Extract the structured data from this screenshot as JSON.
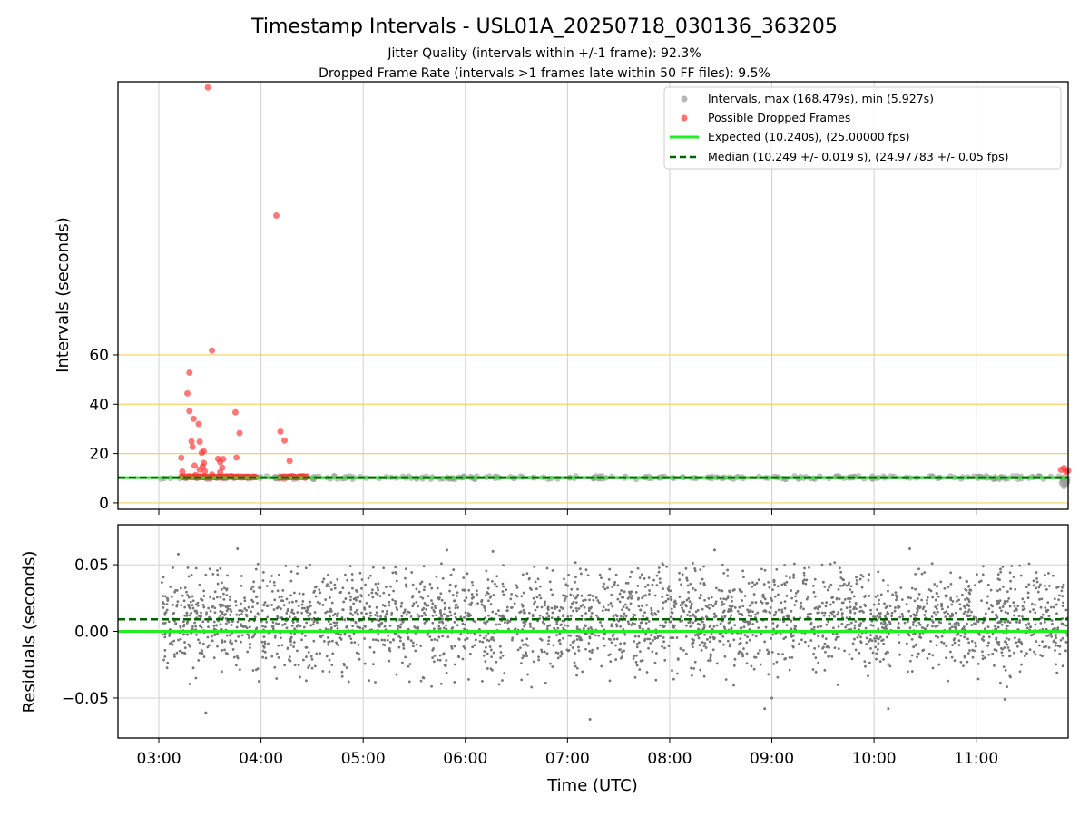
{
  "figure": {
    "title": "Timestamp Intervals - USL01A_20250718_030136_363205",
    "subtitle_1": "Jitter Quality (intervals within +/-1 frame): 92.3%",
    "subtitle_2": "Dropped Frame Rate (intervals >1 frames late within 50 FF files): 9.5%"
  },
  "chart_data": [
    {
      "type": "scatter",
      "ylabel": "Intervals (seconds)",
      "yticks": [
        "0",
        "20",
        "40",
        "60"
      ],
      "ytick_values": [
        0,
        20,
        40,
        60
      ],
      "ylim": [
        -2.6,
        170.8
      ],
      "xlim": [
        2.6,
        11.9
      ],
      "xunit": "hours UTC",
      "grid": true,
      "reference_lines_y": [
        0,
        20,
        40,
        60
      ],
      "legend_position": "upper right",
      "legend": [
        {
          "label": "Intervals, max (168.479s), min (5.927s)",
          "kind": "dot",
          "color": "#999999"
        },
        {
          "label": "Possible Dropped Frames",
          "kind": "dot",
          "color": "#ff5a5a"
        },
        {
          "label": "Expected (10.240s), (25.00000 fps)",
          "kind": "line",
          "color": "#22ee22"
        },
        {
          "label": "Median (10.249 +/- 0.019 s), (24.97783 +/- 0.05 fps)",
          "kind": "dash",
          "color": "#006400"
        }
      ],
      "expected_interval": 10.24,
      "median_interval": 10.249,
      "dropped_frames": [
        {
          "t": 3.48,
          "y": 168.5
        },
        {
          "t": 4.15,
          "y": 116.5
        },
        {
          "t": 3.52,
          "y": 61.8
        },
        {
          "t": 3.3,
          "y": 52.8
        },
        {
          "t": 3.28,
          "y": 44.4
        },
        {
          "t": 3.3,
          "y": 37.2
        },
        {
          "t": 3.34,
          "y": 34.1
        },
        {
          "t": 3.39,
          "y": 32.0
        },
        {
          "t": 3.75,
          "y": 36.7
        },
        {
          "t": 3.79,
          "y": 28.3
        },
        {
          "t": 4.19,
          "y": 28.9
        },
        {
          "t": 4.23,
          "y": 25.3
        },
        {
          "t": 3.32,
          "y": 24.9
        },
        {
          "t": 3.4,
          "y": 24.8
        },
        {
          "t": 3.33,
          "y": 22.7
        },
        {
          "t": 3.44,
          "y": 20.9
        },
        {
          "t": 3.42,
          "y": 20.3
        },
        {
          "t": 3.22,
          "y": 18.3
        },
        {
          "t": 3.76,
          "y": 18.4
        },
        {
          "t": 4.28,
          "y": 17.0
        },
        {
          "t": 3.58,
          "y": 17.9
        },
        {
          "t": 3.6,
          "y": 16.6
        },
        {
          "t": 3.63,
          "y": 17.8
        },
        {
          "t": 3.44,
          "y": 16.2
        },
        {
          "t": 3.35,
          "y": 15.1
        },
        {
          "t": 3.43,
          "y": 14.8
        },
        {
          "t": 3.62,
          "y": 14.3
        },
        {
          "t": 3.4,
          "y": 13.5
        },
        {
          "t": 3.45,
          "y": 12.8
        },
        {
          "t": 3.23,
          "y": 12.7
        },
        {
          "t": 3.6,
          "y": 12.4
        },
        {
          "t": 3.36,
          "y": 11.3
        },
        {
          "t": 3.52,
          "y": 11.5
        },
        {
          "t": 11.83,
          "y": 13.4
        },
        {
          "t": 11.86,
          "y": 14.1
        },
        {
          "t": 11.88,
          "y": 12.6
        },
        {
          "t": 11.9,
          "y": 13.0
        }
      ],
      "dropped_frame_runs": [
        {
          "t_start": 3.22,
          "t_end": 3.5,
          "y": 10.5
        },
        {
          "t_start": 3.52,
          "t_end": 3.95,
          "y": 10.5
        },
        {
          "t_start": 4.18,
          "t_end": 4.45,
          "y": 10.5
        }
      ],
      "normal_interval_band": {
        "t_start": 3.02,
        "t_end": 11.9,
        "y_min": 9.6,
        "y_max": 10.9
      },
      "end_cluster": [
        {
          "t": 11.84,
          "y": 8.0
        },
        {
          "t": 11.86,
          "y": 6.8
        },
        {
          "t": 11.88,
          "y": 7.5
        },
        {
          "t": 11.85,
          "y": 9.0
        },
        {
          "t": 11.89,
          "y": 8.6
        }
      ]
    },
    {
      "type": "scatter",
      "ylabel": "Residuals (seconds)",
      "yticks": [
        "0.05",
        "0.00",
        "−0.05"
      ],
      "ytick_values": [
        0.05,
        0.0,
        -0.05
      ],
      "ylim": [
        -0.08,
        0.08
      ],
      "xlim": [
        2.6,
        11.9
      ],
      "xlabel": "Time (UTC)",
      "xticks": [
        "03:00",
        "04:00",
        "05:00",
        "06:00",
        "07:00",
        "08:00",
        "09:00",
        "10:00",
        "11:00"
      ],
      "xtick_values": [
        3,
        4,
        5,
        6,
        7,
        8,
        9,
        10,
        11
      ],
      "grid": true,
      "zero_line": 0.0,
      "median_offset": 0.009,
      "point_count": 2900,
      "t_start": 3.03,
      "t_end": 11.9,
      "sd": 0.019,
      "residual_outliers": [
        {
          "t": 3.46,
          "y": -0.061
        },
        {
          "t": 7.22,
          "y": -0.066
        },
        {
          "t": 3.77,
          "y": 0.062
        },
        {
          "t": 5.82,
          "y": 0.061
        },
        {
          "t": 8.44,
          "y": 0.061
        },
        {
          "t": 10.35,
          "y": 0.062
        },
        {
          "t": 3.19,
          "y": 0.058
        },
        {
          "t": 10.14,
          "y": -0.058
        },
        {
          "t": 11.28,
          "y": -0.051
        },
        {
          "t": 8.93,
          "y": -0.058
        },
        {
          "t": 9.0,
          "y": -0.05
        },
        {
          "t": 6.27,
          "y": 0.06
        }
      ],
      "point_color": "#777777",
      "zero_line_color": "#22ee22",
      "median_line_color": "#006400"
    }
  ]
}
